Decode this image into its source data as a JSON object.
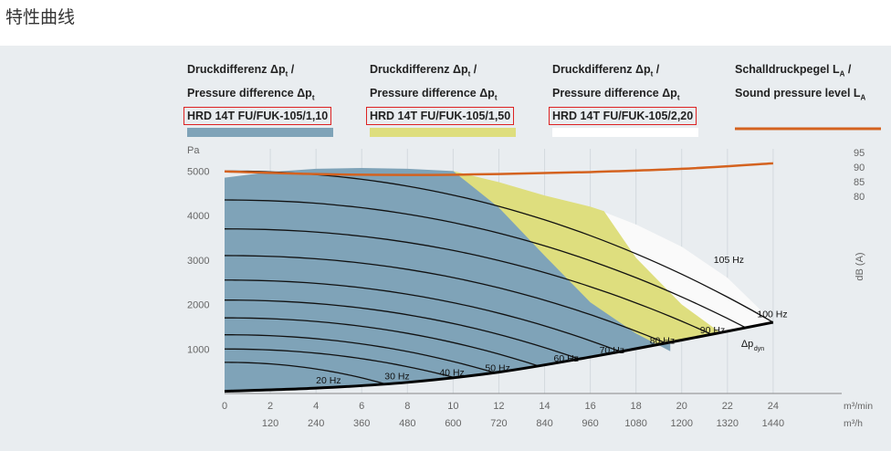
{
  "page": {
    "title": "特性曲线"
  },
  "legend": [
    {
      "line1": "Druckdifferenz Δp",
      "sub1": "t",
      "line2": "Pressure difference Δp",
      "sub2": "t",
      "model": "HRD 14T FU/FUK-105/1,10",
      "color": "#7fa3b8"
    },
    {
      "line1": "Druckdifferenz Δp",
      "sub1": "t",
      "line2": "Pressure difference Δp",
      "sub2": "t",
      "model": "HRD 14T FU/FUK-105/1,50",
      "color": "#dede7e"
    },
    {
      "line1": "Druckdifferenz Δp",
      "sub1": "t",
      "line2": "Pressure difference Δp",
      "sub2": "t",
      "model": "HRD 14T FU/FUK-105/2,20",
      "color": "#ffffff"
    },
    {
      "line1": "Schalldruckpegel L",
      "sub1": "A",
      "line2": "Sound pressure level L",
      "sub2": "A",
      "model": "",
      "color": "#d4621f"
    }
  ],
  "chart_data": {
    "type": "area",
    "x_unit_primary": "m³/min",
    "x_unit_secondary": "m³/h",
    "x_ticks_primary": [
      "0",
      "2",
      "4",
      "6",
      "8",
      "10",
      "12",
      "14",
      "16",
      "18",
      "20",
      "22",
      "24"
    ],
    "x_ticks_secondary": [
      "120",
      "240",
      "360",
      "480",
      "600",
      "720",
      "840",
      "960",
      "1080",
      "1200",
      "1320",
      "1440"
    ],
    "y_unit": "Pa",
    "y_ticks": [
      "1000",
      "2000",
      "3000",
      "4000",
      "5000"
    ],
    "y2_label": "dB (A)",
    "y2_ticks": [
      "80",
      "85",
      "90",
      "95"
    ],
    "xlim": [
      0,
      27
    ],
    "ylim": [
      0,
      5500
    ],
    "y2lim": [
      80,
      95
    ],
    "areas": [
      {
        "model": "HRD 14T FU/FUK-105/2,20",
        "color": "#fafafa",
        "upper": [
          [
            16.5,
            4100
          ],
          [
            18,
            3800
          ],
          [
            20,
            3300
          ],
          [
            22,
            2600
          ],
          [
            23.4,
            1900
          ],
          [
            24,
            1600
          ]
        ]
      },
      {
        "model": "HRD 14T FU/FUK-105/1,50",
        "color": "#dede7e",
        "upper": [
          [
            10,
            5000
          ],
          [
            12,
            4750
          ],
          [
            14,
            4450
          ],
          [
            16,
            4200
          ],
          [
            16.6,
            4100
          ],
          [
            18,
            3050
          ],
          [
            20,
            2000
          ],
          [
            21.6,
            1400
          ]
        ]
      },
      {
        "model": "HRD 14T FU/FUK-105/1,10",
        "color": "#7fa3b8",
        "upper": [
          [
            0,
            4850
          ],
          [
            2,
            4980
          ],
          [
            4,
            5050
          ],
          [
            6,
            5070
          ],
          [
            8,
            5050
          ],
          [
            10,
            5000
          ],
          [
            12,
            4180
          ],
          [
            14,
            3100
          ],
          [
            16,
            2050
          ],
          [
            18,
            1350
          ],
          [
            19.5,
            950
          ]
        ]
      }
    ],
    "rpm_curves": [
      {
        "label": "20 Hz",
        "x_end": 7.0,
        "p0": 700
      },
      {
        "label": "30 Hz",
        "x_end": 10.0,
        "p0": 1000
      },
      {
        "label": "40 Hz",
        "x_end": 11.8,
        "p0": 1320
      },
      {
        "label": "50 Hz",
        "x_end": 13.7,
        "p0": 1700
      },
      {
        "label": "60 Hz",
        "x_end": 15.5,
        "p0": 2100
      },
      {
        "label": "70 Hz",
        "x_end": 17.3,
        "p0": 2550
      },
      {
        "label": "80 Hz",
        "x_end": 19.3,
        "p0": 3100
      },
      {
        "label": "90 Hz",
        "x_end": 21.3,
        "p0": 3700
      },
      {
        "label": "",
        "x_end": 22.8,
        "p0": 4350
      },
      {
        "label": "100 Hz",
        "x_end": 24.0,
        "p0": 5000
      }
    ],
    "rpm_labels": [
      {
        "text": "20 Hz",
        "x": 4.0,
        "y": 230
      },
      {
        "text": "30 Hz",
        "x": 7.0,
        "y": 320
      },
      {
        "text": "40 Hz",
        "x": 9.4,
        "y": 400
      },
      {
        "text": "50 Hz",
        "x": 11.4,
        "y": 500
      },
      {
        "text": "60 Hz",
        "x": 14.4,
        "y": 720
      },
      {
        "text": "70 Hz",
        "x": 16.4,
        "y": 900
      },
      {
        "text": "80 Hz",
        "x": 18.6,
        "y": 1120
      },
      {
        "text": "90 Hz",
        "x": 20.8,
        "y": 1350
      },
      {
        "text": "100 Hz",
        "x": 23.3,
        "y": 1710
      },
      {
        "text": "105 Hz",
        "x": 21.4,
        "y": 2930
      }
    ],
    "dyn_curve": {
      "label": "Δp",
      "label_sub": "dyn",
      "points": [
        [
          0,
          50
        ],
        [
          4,
          120
        ],
        [
          8,
          250
        ],
        [
          12,
          480
        ],
        [
          16,
          820
        ],
        [
          20,
          1200
        ],
        [
          24,
          1600
        ]
      ]
    },
    "sound_level_dBA": [
      [
        0,
        88.5
      ],
      [
        4,
        87.6
      ],
      [
        8,
        87.3
      ],
      [
        12,
        87.6
      ],
      [
        16,
        88.3
      ],
      [
        20,
        89.4
      ],
      [
        24,
        91.3
      ]
    ]
  }
}
